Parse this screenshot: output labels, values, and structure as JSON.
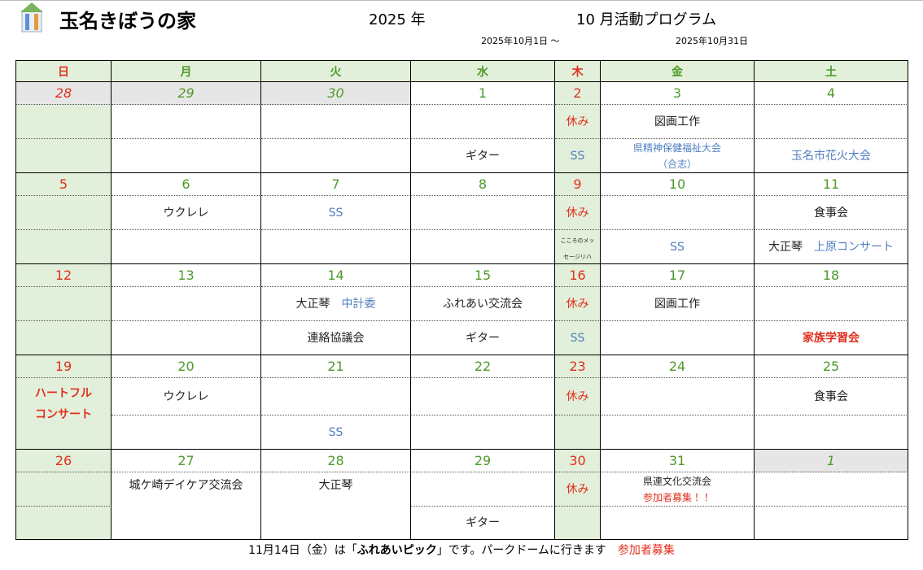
{
  "header": {
    "title": "玉名きぼうの家",
    "year": "2025 年",
    "program": "10 月活動プログラム",
    "from": "2025年10月1日 ～",
    "to": "2025年10月31日"
  },
  "table": {
    "weekdays": [
      "日",
      "月",
      "火",
      "水",
      "木",
      "金",
      "土"
    ],
    "weeks": [
      {
        "dates": [
          28,
          29,
          30,
          1,
          2,
          3,
          4
        ],
        "row1": [
          null,
          null,
          null,
          null,
          [
            [
              {
                "text": "休み",
                "color": "#e0301e"
              }
            ]
          ],
          [
            [
              {
                "text": "図画工作"
              }
            ]
          ],
          null
        ],
        "row2": [
          null,
          null,
          null,
          [
            [
              {
                "text": "ギター"
              }
            ]
          ],
          [
            [
              {
                "text": "SS",
                "color": "#4f7fc0"
              }
            ]
          ],
          [
            [
              {
                "text": "県精神保健福祉大会",
                "color": "#4f7fc0",
                "size": "small"
              }
            ],
            [
              {
                "text": "（合志）",
                "color": "#4f7fc0",
                "size": "small"
              }
            ]
          ],
          [
            [
              {
                "text": "玉名市花火大会",
                "color": "#4f7fc0"
              }
            ]
          ]
        ]
      },
      {
        "dates": [
          5,
          6,
          7,
          8,
          9,
          10,
          11
        ],
        "row1": [
          null,
          [
            [
              {
                "text": "ウクレレ"
              }
            ]
          ],
          [
            [
              {
                "text": "SS",
                "color": "#4f7fc0"
              }
            ]
          ],
          null,
          [
            [
              {
                "text": "休み",
                "color": "#e0301e"
              }
            ]
          ],
          null,
          [
            [
              {
                "text": "食事会"
              }
            ]
          ]
        ],
        "row2": [
          null,
          null,
          null,
          null,
          [
            [
              {
                "text": "こころのメッ",
                "size": "tiny"
              }
            ],
            [
              {
                "text": "セージリハ",
                "size": "tiny"
              }
            ]
          ],
          [
            [
              {
                "text": "SS",
                "color": "#4f7fc0"
              }
            ]
          ],
          [
            [
              {
                "text": "大正琴"
              },
              {
                "text": "上原コンサート",
                "color": "#4f7fc0"
              }
            ]
          ]
        ]
      },
      {
        "dates": [
          12,
          13,
          14,
          15,
          16,
          17,
          18
        ],
        "row1": [
          null,
          null,
          [
            [
              {
                "text": "大正琴"
              },
              {
                "text": "中計委",
                "color": "#4f7fc0"
              }
            ]
          ],
          [
            [
              {
                "text": "ふれあい交流会"
              }
            ]
          ],
          [
            [
              {
                "text": "休み",
                "color": "#e0301e"
              }
            ]
          ],
          [
            [
              {
                "text": "図画工作"
              }
            ]
          ],
          null
        ],
        "row2": [
          null,
          null,
          [
            [
              {
                "text": "連絡協議会"
              }
            ]
          ],
          [
            [
              {
                "text": "ギター"
              }
            ]
          ],
          [
            [
              {
                "text": "SS",
                "color": "#4f7fc0"
              }
            ]
          ],
          null,
          [
            [
              {
                "text": "家族学習会",
                "color": "#e0301e",
                "bold": true
              }
            ]
          ]
        ]
      },
      {
        "dates": [
          19,
          20,
          21,
          22,
          23,
          24,
          25
        ],
        "row1": [
          [
            [
              {
                "text": "ハートフル",
                "color": "#e0301e",
                "bold": true
              }
            ],
            [
              {
                "text": "コンサート",
                "color": "#e0301e",
                "bold": true
              }
            ]
          ],
          [
            [
              {
                "text": "ウクレレ"
              }
            ]
          ],
          null,
          null,
          [
            [
              {
                "text": "休み",
                "color": "#e0301e"
              }
            ]
          ],
          null,
          [
            [
              {
                "text": "食事会"
              }
            ]
          ]
        ],
        "row2": [
          null,
          null,
          [
            [
              {
                "text": "SS",
                "color": "#4f7fc0"
              }
            ]
          ],
          null,
          null,
          null,
          null
        ]
      },
      {
        "dates": [
          26,
          27,
          28,
          29,
          30,
          31,
          1
        ],
        "row1": [
          null,
          [
            [
              {
                "text": "城ケ崎デイケア交流会"
              }
            ]
          ],
          [
            [
              {
                "text": "大正琴"
              }
            ]
          ],
          null,
          [
            [
              {
                "text": "休み",
                "color": "#e0301e"
              }
            ]
          ],
          [
            [
              {
                "text": "県連文化交流会",
                "size": "small"
              }
            ],
            [
              {
                "text": "参加者募集！！",
                "color": "#e0301e",
                "size": "small"
              }
            ]
          ],
          null
        ],
        "row2": [
          null,
          null,
          null,
          [
            [
              {
                "text": "ギター"
              }
            ]
          ],
          null,
          null,
          null
        ]
      }
    ]
  },
  "footer": [
    {
      "text": "11月14日（金）は「"
    },
    {
      "text": "ふれあいピック",
      "bold": true
    },
    {
      "text": "」です。パークドームに行きます"
    },
    {
      "text": "参加者募集",
      "color": "#e0301e"
    }
  ]
}
